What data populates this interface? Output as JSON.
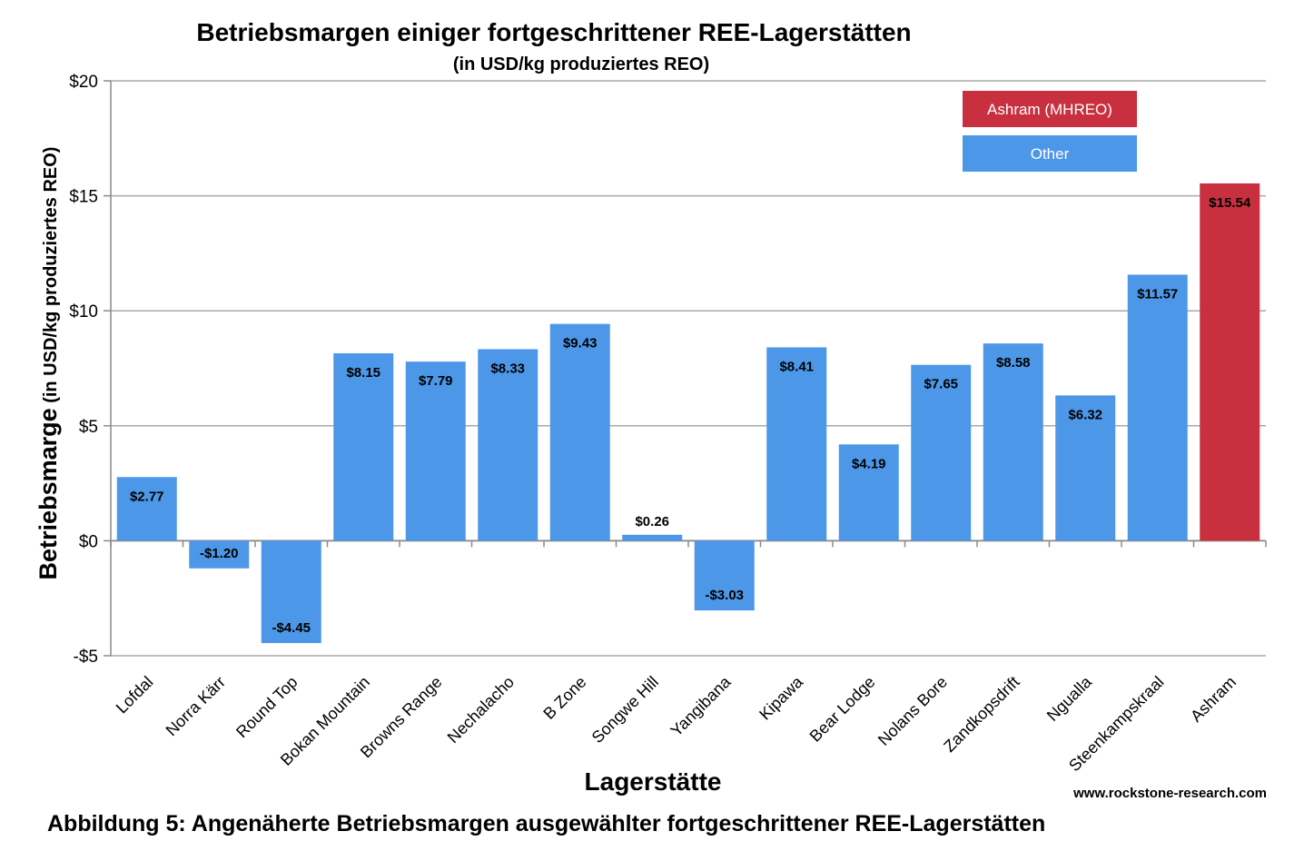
{
  "chart_data": {
    "type": "bar",
    "title": "Betriebsmargen einiger fortgeschrittener REE-Lagerstätten",
    "subtitle": "(in USD/kg produziertes REO)",
    "ylabel_main": "Betriebsmarge",
    "ylabel_sub": " (in USD/kg produziertes REO)",
    "xlabel": "Lagerstätte",
    "ylim": [
      -5,
      20
    ],
    "yticks": [
      20,
      15,
      10,
      5,
      0,
      -5
    ],
    "ytick_labels": [
      "$20",
      "$15",
      "$10",
      "$5",
      "$0",
      "-$5"
    ],
    "grid": true,
    "legend_position": "top-right",
    "categories": [
      "Lofdal",
      "Norra Kärr",
      "Round Top",
      "Bokan Mountain",
      "Browns Range",
      "Nechalacho",
      "B Zone",
      "Songwe Hill",
      "Yangibana",
      "Kipawa",
      "Bear Lodge",
      "Nolans Bore",
      "Zandkopsdrift",
      "Ngualla",
      "Steenkampskraal",
      "Ashram"
    ],
    "values": [
      2.77,
      -1.2,
      -4.45,
      8.15,
      7.79,
      8.33,
      9.43,
      0.26,
      -3.03,
      8.41,
      4.19,
      7.65,
      8.58,
      6.32,
      11.57,
      15.54
    ],
    "value_labels": [
      "$2.77",
      "-$1.20",
      "-$4.45",
      "$8.15",
      "$7.79",
      "$8.33",
      "$9.43",
      "$0.26",
      "-$3.03",
      "$8.41",
      "$4.19",
      "$7.65",
      "$8.58",
      "$6.32",
      "$11.57",
      "$15.54"
    ],
    "groups": [
      "Other",
      "Other",
      "Other",
      "Other",
      "Other",
      "Other",
      "Other",
      "Other",
      "Other",
      "Other",
      "Other",
      "Other",
      "Other",
      "Other",
      "Other",
      "Ashram (MHREO)"
    ],
    "legend": [
      {
        "name": "Ashram (MHREO)",
        "color": "#c8303f"
      },
      {
        "name": "Other",
        "color": "#4d97e8"
      }
    ]
  },
  "credit": "www.rockstone-research.com",
  "caption": "Abbildung 5: Angenäherte Betriebsmargen ausgewählter fortgeschrittener REE-Lagerstätten"
}
